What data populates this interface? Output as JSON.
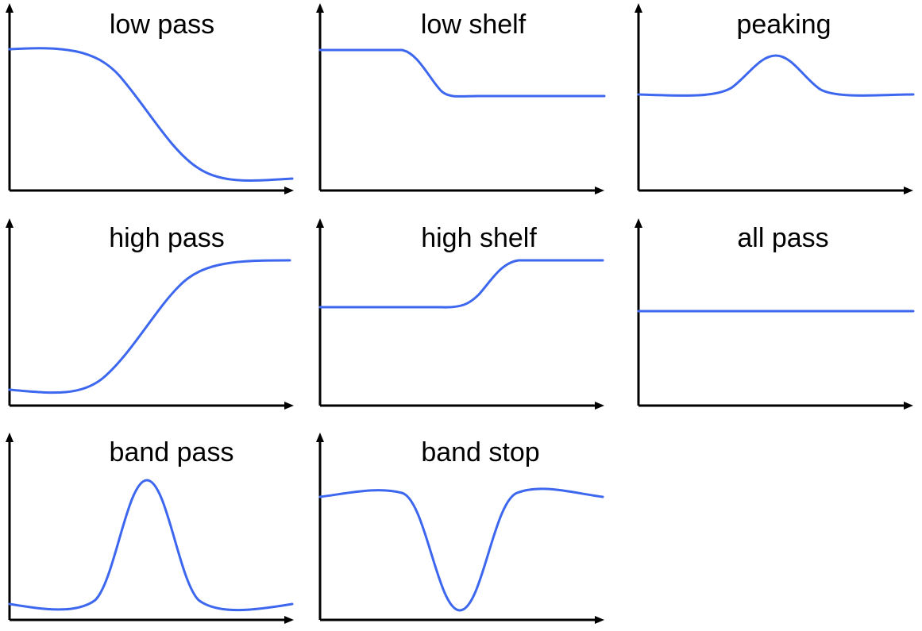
{
  "colors": {
    "curve": "#3c67ee",
    "axis": "#000000",
    "background": "#ffffff"
  },
  "panels": [
    {
      "id": "low-pass",
      "title": "low pass",
      "shape": "low-pass"
    },
    {
      "id": "low-shelf",
      "title": "low shelf",
      "shape": "low-shelf"
    },
    {
      "id": "peaking",
      "title": "peaking",
      "shape": "peaking"
    },
    {
      "id": "high-pass",
      "title": "high pass",
      "shape": "high-pass"
    },
    {
      "id": "high-shelf",
      "title": "high shelf",
      "shape": "high-shelf"
    },
    {
      "id": "all-pass",
      "title": "all pass",
      "shape": "all-pass"
    },
    {
      "id": "band-pass",
      "title": "band pass",
      "shape": "band-pass"
    },
    {
      "id": "band-stop",
      "title": "band stop",
      "shape": "band-stop"
    }
  ]
}
